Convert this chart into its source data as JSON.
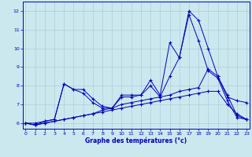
{
  "xlabel": "Graphe des températures (°c)",
  "xlim_min": -0.3,
  "xlim_max": 23.3,
  "ylim_min": 5.7,
  "ylim_max": 12.5,
  "xticks": [
    0,
    1,
    2,
    3,
    4,
    5,
    6,
    7,
    8,
    9,
    10,
    11,
    12,
    13,
    14,
    15,
    16,
    17,
    18,
    19,
    20,
    21,
    22,
    23
  ],
  "yticks": [
    6,
    7,
    8,
    9,
    10,
    11,
    12
  ],
  "background_color": "#cce8ef",
  "grid_color": "#a0c8d4",
  "line_color": "#0000bb",
  "series1": [
    6.0,
    6.0,
    6.1,
    6.2,
    8.1,
    7.8,
    7.8,
    7.3,
    6.9,
    6.8,
    7.5,
    7.5,
    7.5,
    8.3,
    7.5,
    10.3,
    9.5,
    12.0,
    11.5,
    10.0,
    8.5,
    7.4,
    7.2,
    7.1
  ],
  "series2": [
    6.0,
    5.9,
    6.1,
    6.2,
    8.1,
    7.8,
    7.6,
    7.1,
    6.8,
    6.8,
    7.4,
    7.4,
    7.5,
    8.0,
    7.4,
    8.5,
    9.5,
    11.8,
    10.4,
    8.8,
    8.4,
    7.2,
    6.3,
    6.2
  ],
  "series3": [
    6.0,
    5.9,
    6.0,
    6.1,
    6.2,
    6.3,
    6.4,
    6.5,
    6.7,
    6.8,
    7.0,
    7.1,
    7.2,
    7.3,
    7.4,
    7.5,
    7.7,
    7.8,
    7.9,
    8.9,
    8.5,
    7.5,
    6.4,
    6.2
  ],
  "series4": [
    6.0,
    5.9,
    6.0,
    6.1,
    6.2,
    6.3,
    6.4,
    6.5,
    6.6,
    6.7,
    6.8,
    6.9,
    7.0,
    7.1,
    7.2,
    7.3,
    7.4,
    7.5,
    7.6,
    7.7,
    7.7,
    7.0,
    6.5,
    6.2
  ]
}
